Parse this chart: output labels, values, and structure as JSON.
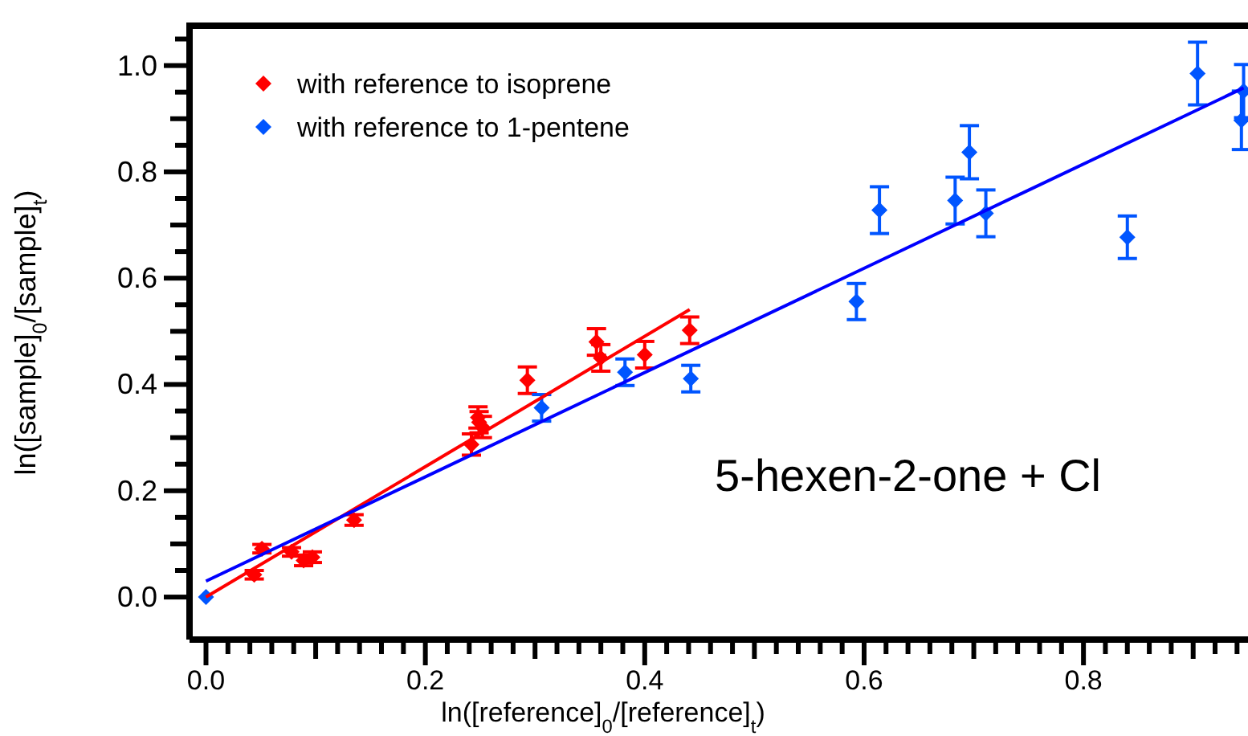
{
  "chart_data": {
    "type": "scatter",
    "xlabel": "ln([reference]$_{0}$/[reference]$_{t}$)",
    "ylabel": "ln([sample]$_{0}$/[sample]$_{t}$)",
    "annotations": [
      "5-hexen-2-one + Cl"
    ],
    "xlim": [
      -0.015,
      0.95
    ],
    "ylim": [
      -0.08,
      1.075
    ],
    "xticks": [
      {
        "value": 0,
        "label": "0.0"
      },
      {
        "value": 0.02,
        "label": null
      },
      {
        "value": 0.04,
        "label": null
      },
      {
        "value": 0.06,
        "label": null
      },
      {
        "value": 0.08,
        "label": null
      },
      {
        "value": 0.1,
        "label": null
      },
      {
        "value": 0.12,
        "label": null
      },
      {
        "value": 0.14,
        "label": null
      },
      {
        "value": 0.16,
        "label": null
      },
      {
        "value": 0.18,
        "label": null
      },
      0.2,
      {
        "value": 0.22,
        "label": null
      },
      {
        "value": 0.24,
        "label": null
      },
      {
        "value": 0.26,
        "label": null
      },
      {
        "value": 0.28,
        "label": null
      },
      {
        "value": 0.3,
        "label": null
      },
      {
        "value": 0.32,
        "label": null
      },
      {
        "value": 0.34,
        "label": null
      },
      {
        "value": 0.36,
        "label": null
      },
      {
        "value": 0.38,
        "label": null
      },
      0.4,
      {
        "value": 0.42,
        "label": null
      },
      {
        "value": 0.44,
        "label": null
      },
      {
        "value": 0.46,
        "label": null
      },
      {
        "value": 0.48,
        "label": null
      },
      {
        "value": 0.5,
        "label": null
      },
      {
        "value": 0.52,
        "label": null
      },
      {
        "value": 0.54,
        "label": null
      },
      {
        "value": 0.56,
        "label": null
      },
      {
        "value": 0.58,
        "label": null
      },
      0.6,
      {
        "value": 0.62,
        "label": null
      },
      {
        "value": 0.64,
        "label": null
      },
      {
        "value": 0.66,
        "label": null
      },
      {
        "value": 0.68,
        "label": null
      },
      {
        "value": 0.7,
        "label": null
      },
      {
        "value": 0.72,
        "label": null
      },
      {
        "value": 0.74,
        "label": null
      },
      {
        "value": 0.76,
        "label": null
      },
      {
        "value": 0.78,
        "label": null
      },
      0.8,
      {
        "value": 0.82,
        "label": null
      },
      {
        "value": 0.84,
        "label": null
      },
      {
        "value": 0.86,
        "label": null
      },
      {
        "value": 0.88,
        "label": null
      },
      {
        "value": 0.9,
        "label": null
      },
      {
        "value": 0.92,
        "label": null
      },
      {
        "value": 0.94,
        "label": null
      }
    ],
    "yticks": [
      {
        "value": 0,
        "label": "0.0"
      },
      {
        "value": 0.05,
        "label": null
      },
      {
        "value": 0.1,
        "label": null
      },
      {
        "value": 0.15,
        "label": null
      },
      0.2,
      {
        "value": 0.25,
        "label": null
      },
      {
        "value": 0.3,
        "label": null
      },
      {
        "value": 0.35,
        "label": null
      },
      0.4,
      {
        "value": 0.45,
        "label": null
      },
      {
        "value": 0.5,
        "label": null
      },
      {
        "value": 0.55,
        "label": null
      },
      0.6,
      {
        "value": 0.65,
        "label": null
      },
      {
        "value": 0.7,
        "label": null
      },
      {
        "value": 0.75,
        "label": null
      },
      0.8,
      {
        "value": 0.85,
        "label": null
      },
      {
        "value": 0.9,
        "label": null
      },
      {
        "value": 0.95,
        "label": null
      },
      {
        "value": 1.0,
        "label": "1.0"
      },
      {
        "value": 1.05,
        "label": null
      }
    ],
    "legend": "top left",
    "marker": "diamond",
    "series": [
      {
        "name": "with reference to isoprene",
        "color": "#ff0000",
        "x": [
          0.044,
          0.051,
          0.078,
          0.089,
          0.097,
          0.135,
          0.242,
          0.248,
          0.249,
          0.252,
          0.293,
          0.356,
          0.36,
          0.4,
          0.441
        ],
        "values": [
          0.042,
          0.091,
          0.085,
          0.069,
          0.075,
          0.145,
          0.287,
          0.338,
          0.329,
          0.32,
          0.408,
          0.48,
          0.45,
          0.456,
          0.502
        ],
        "errors": [
          0.008,
          0.008,
          0.008,
          0.01,
          0.01,
          0.01,
          0.02,
          0.02,
          0.02,
          0.02,
          0.025,
          0.025,
          0.025,
          0.025,
          0.025
        ]
      },
      {
        "name": "with reference to 1-pentene",
        "color": "#0055ff",
        "x": [
          0,
          0.306,
          0.382,
          0.442,
          0.593,
          0.614,
          0.683,
          0.696,
          0.711,
          0.84,
          0.904,
          0.944,
          0.946
        ],
        "values": [
          0,
          0.356,
          0.423,
          0.411,
          0.556,
          0.728,
          0.746,
          0.837,
          0.722,
          0.677,
          0.985,
          0.897,
          0.952
        ],
        "errors": [
          null,
          0.025,
          0.025,
          0.025,
          0.034,
          0.044,
          0.044,
          0.05,
          0.044,
          0.04,
          0.059,
          0.055,
          0.05
        ]
      },
      {
        "type": "line",
        "color": "#ff0000",
        "x": [
          0,
          0.441
        ],
        "values": [
          0,
          0.541
        ],
        "marker": "none"
      },
      {
        "type": "line",
        "color": "#0000ff",
        "x": [
          0,
          0.946
        ],
        "values": [
          0.03,
          0.958
        ],
        "marker": "none"
      }
    ]
  }
}
